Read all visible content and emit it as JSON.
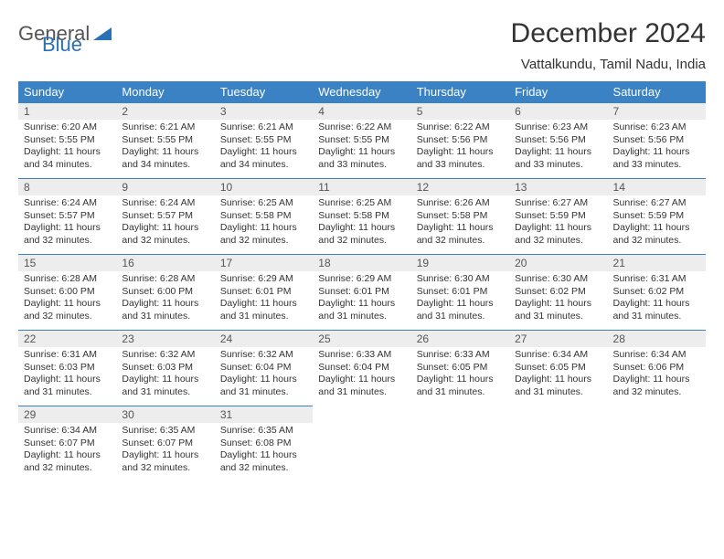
{
  "brand": {
    "g": "General",
    "b": "Blue"
  },
  "title": "December 2024",
  "location": "Vattalkundu, Tamil Nadu, India",
  "colors": {
    "header_bg": "#3a82c4",
    "header_text": "#ffffff",
    "daynum_bg": "#ededed",
    "daynum_text": "#555555",
    "body_text": "#333333",
    "row_border": "#3a82c4",
    "logo_gray": "#545454",
    "logo_blue": "#2a72b5"
  },
  "weekdays": [
    "Sunday",
    "Monday",
    "Tuesday",
    "Wednesday",
    "Thursday",
    "Friday",
    "Saturday"
  ],
  "weeks": [
    [
      {
        "n": "1",
        "sr": "6:20 AM",
        "ss": "5:55 PM",
        "dl": "11 hours and 34 minutes."
      },
      {
        "n": "2",
        "sr": "6:21 AM",
        "ss": "5:55 PM",
        "dl": "11 hours and 34 minutes."
      },
      {
        "n": "3",
        "sr": "6:21 AM",
        "ss": "5:55 PM",
        "dl": "11 hours and 34 minutes."
      },
      {
        "n": "4",
        "sr": "6:22 AM",
        "ss": "5:55 PM",
        "dl": "11 hours and 33 minutes."
      },
      {
        "n": "5",
        "sr": "6:22 AM",
        "ss": "5:56 PM",
        "dl": "11 hours and 33 minutes."
      },
      {
        "n": "6",
        "sr": "6:23 AM",
        "ss": "5:56 PM",
        "dl": "11 hours and 33 minutes."
      },
      {
        "n": "7",
        "sr": "6:23 AM",
        "ss": "5:56 PM",
        "dl": "11 hours and 33 minutes."
      }
    ],
    [
      {
        "n": "8",
        "sr": "6:24 AM",
        "ss": "5:57 PM",
        "dl": "11 hours and 32 minutes."
      },
      {
        "n": "9",
        "sr": "6:24 AM",
        "ss": "5:57 PM",
        "dl": "11 hours and 32 minutes."
      },
      {
        "n": "10",
        "sr": "6:25 AM",
        "ss": "5:58 PM",
        "dl": "11 hours and 32 minutes."
      },
      {
        "n": "11",
        "sr": "6:25 AM",
        "ss": "5:58 PM",
        "dl": "11 hours and 32 minutes."
      },
      {
        "n": "12",
        "sr": "6:26 AM",
        "ss": "5:58 PM",
        "dl": "11 hours and 32 minutes."
      },
      {
        "n": "13",
        "sr": "6:27 AM",
        "ss": "5:59 PM",
        "dl": "11 hours and 32 minutes."
      },
      {
        "n": "14",
        "sr": "6:27 AM",
        "ss": "5:59 PM",
        "dl": "11 hours and 32 minutes."
      }
    ],
    [
      {
        "n": "15",
        "sr": "6:28 AM",
        "ss": "6:00 PM",
        "dl": "11 hours and 32 minutes."
      },
      {
        "n": "16",
        "sr": "6:28 AM",
        "ss": "6:00 PM",
        "dl": "11 hours and 31 minutes."
      },
      {
        "n": "17",
        "sr": "6:29 AM",
        "ss": "6:01 PM",
        "dl": "11 hours and 31 minutes."
      },
      {
        "n": "18",
        "sr": "6:29 AM",
        "ss": "6:01 PM",
        "dl": "11 hours and 31 minutes."
      },
      {
        "n": "19",
        "sr": "6:30 AM",
        "ss": "6:01 PM",
        "dl": "11 hours and 31 minutes."
      },
      {
        "n": "20",
        "sr": "6:30 AM",
        "ss": "6:02 PM",
        "dl": "11 hours and 31 minutes."
      },
      {
        "n": "21",
        "sr": "6:31 AM",
        "ss": "6:02 PM",
        "dl": "11 hours and 31 minutes."
      }
    ],
    [
      {
        "n": "22",
        "sr": "6:31 AM",
        "ss": "6:03 PM",
        "dl": "11 hours and 31 minutes."
      },
      {
        "n": "23",
        "sr": "6:32 AM",
        "ss": "6:03 PM",
        "dl": "11 hours and 31 minutes."
      },
      {
        "n": "24",
        "sr": "6:32 AM",
        "ss": "6:04 PM",
        "dl": "11 hours and 31 minutes."
      },
      {
        "n": "25",
        "sr": "6:33 AM",
        "ss": "6:04 PM",
        "dl": "11 hours and 31 minutes."
      },
      {
        "n": "26",
        "sr": "6:33 AM",
        "ss": "6:05 PM",
        "dl": "11 hours and 31 minutes."
      },
      {
        "n": "27",
        "sr": "6:34 AM",
        "ss": "6:05 PM",
        "dl": "11 hours and 31 minutes."
      },
      {
        "n": "28",
        "sr": "6:34 AM",
        "ss": "6:06 PM",
        "dl": "11 hours and 32 minutes."
      }
    ],
    [
      {
        "n": "29",
        "sr": "6:34 AM",
        "ss": "6:07 PM",
        "dl": "11 hours and 32 minutes."
      },
      {
        "n": "30",
        "sr": "6:35 AM",
        "ss": "6:07 PM",
        "dl": "11 hours and 32 minutes."
      },
      {
        "n": "31",
        "sr": "6:35 AM",
        "ss": "6:08 PM",
        "dl": "11 hours and 32 minutes."
      },
      null,
      null,
      null,
      null
    ]
  ],
  "labels": {
    "sunrise": "Sunrise: ",
    "sunset": "Sunset: ",
    "daylight": "Daylight: "
  }
}
